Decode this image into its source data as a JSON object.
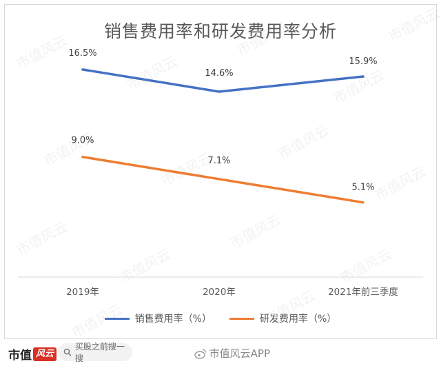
{
  "chart_data": {
    "type": "line",
    "title": "销售费用率和研发费用率分析",
    "categories": [
      "2019年",
      "2020年",
      "2021年前三季度"
    ],
    "series": [
      {
        "name": "销售费用率（%）",
        "values": [
          16.5,
          14.6,
          15.9
        ],
        "labels": [
          "16.5%",
          "14.6%",
          "15.9%"
        ],
        "color": "#4472c4"
      },
      {
        "name": "研发费用率（%）",
        "values": [
          9.0,
          7.1,
          5.1
        ],
        "labels": [
          "9.0%",
          "7.1%",
          "5.1%"
        ],
        "color": "#ed7d31"
      }
    ],
    "grid": false,
    "legend_position": "bottom"
  },
  "watermark": "市值风云",
  "footer": {
    "brand": "市值",
    "brand_mark": "风云",
    "search_text": "买股之前搜一搜",
    "weibo_text": "市值风云APP"
  },
  "icons": {
    "search": "search-icon",
    "weibo": "weibo-icon"
  }
}
